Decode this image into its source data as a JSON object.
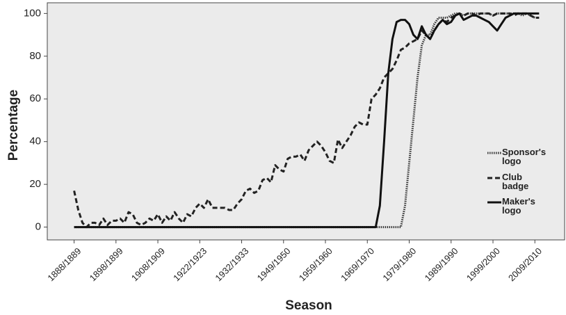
{
  "chart_data": {
    "type": "line",
    "x_label": "Season",
    "y_label": "Percentage",
    "categories": [
      "1888/1889",
      null,
      null,
      null,
      null,
      null,
      null,
      null,
      null,
      null,
      "1898/1899",
      null,
      null,
      null,
      null,
      null,
      null,
      null,
      null,
      null,
      "1908/1909",
      null,
      null,
      null,
      null,
      null,
      null,
      null,
      null,
      null,
      "1922/1923",
      null,
      null,
      null,
      null,
      null,
      null,
      null,
      null,
      null,
      "1932/1933",
      null,
      null,
      null,
      null,
      null,
      null,
      null,
      null,
      null,
      "1949/1950",
      null,
      null,
      null,
      null,
      null,
      null,
      null,
      null,
      null,
      "1959/1960",
      null,
      null,
      null,
      null,
      null,
      null,
      null,
      null,
      null,
      "1969/1970",
      null,
      null,
      null,
      null,
      null,
      null,
      null,
      null,
      null,
      "1979/1980",
      null,
      null,
      null,
      null,
      null,
      null,
      null,
      null,
      null,
      "1989/1990",
      null,
      null,
      null,
      null,
      null,
      null,
      null,
      null,
      null,
      "1999/2000",
      null,
      null,
      null,
      null,
      null,
      null,
      null,
      null,
      null,
      "2009/2010",
      null
    ],
    "series": [
      {
        "name": "Sponsor's logo",
        "color": "#333333",
        "dash": "dotted",
        "values": [
          0,
          0,
          0,
          0,
          0,
          0,
          0,
          0,
          0,
          0,
          0,
          0,
          0,
          0,
          0,
          0,
          0,
          0,
          0,
          0,
          0,
          0,
          0,
          0,
          0,
          0,
          0,
          0,
          0,
          0,
          0,
          0,
          0,
          0,
          0,
          0,
          0,
          0,
          0,
          0,
          0,
          0,
          0,
          0,
          0,
          0,
          0,
          0,
          0,
          0,
          0,
          0,
          0,
          0,
          0,
          0,
          0,
          0,
          0,
          0,
          0,
          0,
          0,
          0,
          0,
          0,
          0,
          0,
          0,
          0,
          0,
          0,
          0,
          0,
          0,
          0,
          0,
          0,
          0,
          10,
          30,
          50,
          70,
          85,
          90,
          90,
          95,
          98,
          98,
          98,
          99,
          100,
          100,
          99,
          100,
          100,
          100,
          100,
          100,
          100,
          99,
          100,
          100,
          100,
          100,
          100,
          100,
          99,
          100,
          99,
          98,
          98
        ]
      },
      {
        "name": "Club badge",
        "color": "#222222",
        "dash": "dashed",
        "values": [
          17,
          8,
          2,
          0,
          2,
          2,
          1,
          4,
          1,
          3,
          3,
          4,
          2,
          7,
          6,
          2,
          1,
          2,
          4,
          3,
          6,
          2,
          5,
          3,
          7,
          4,
          2,
          6,
          5,
          9,
          11,
          9,
          13,
          9,
          9,
          9,
          9,
          8,
          8,
          11,
          13,
          17,
          18,
          16,
          17,
          22,
          23,
          21,
          29,
          27,
          26,
          32,
          33,
          33,
          34,
          31,
          36,
          38,
          40,
          38,
          35,
          31,
          30,
          41,
          37,
          40,
          43,
          47,
          49,
          48,
          48,
          60,
          62,
          65,
          70,
          72,
          74,
          78,
          83,
          84,
          86,
          87,
          88,
          92,
          90,
          88,
          92,
          95,
          97,
          96,
          98,
          99,
          100,
          99,
          100,
          100,
          99,
          100,
          100,
          100,
          99,
          100,
          100,
          100,
          100,
          99,
          100,
          100,
          100,
          99,
          98,
          98
        ]
      },
      {
        "name": "Maker's logo",
        "color": "#111111",
        "dash": "solid",
        "values": [
          0,
          0,
          0,
          0,
          0,
          0,
          0,
          0,
          0,
          0,
          0,
          0,
          0,
          0,
          0,
          0,
          0,
          0,
          0,
          0,
          0,
          0,
          0,
          0,
          0,
          0,
          0,
          0,
          0,
          0,
          0,
          0,
          0,
          0,
          0,
          0,
          0,
          0,
          0,
          0,
          0,
          0,
          0,
          0,
          0,
          0,
          0,
          0,
          0,
          0,
          0,
          0,
          0,
          0,
          0,
          0,
          0,
          0,
          0,
          0,
          0,
          0,
          0,
          0,
          0,
          0,
          0,
          0,
          0,
          0,
          0,
          0,
          0,
          10,
          40,
          72,
          88,
          96,
          97,
          97,
          95,
          90,
          88,
          94,
          90,
          88,
          92,
          95,
          97,
          95,
          96,
          99,
          100,
          97,
          98,
          99,
          99,
          98,
          97,
          96,
          94,
          92,
          95,
          98,
          99,
          100,
          100,
          100,
          100,
          100,
          100,
          100
        ]
      }
    ],
    "ylim": [
      -6,
      105
    ],
    "yticks": [
      0,
      20,
      40,
      60,
      80,
      100
    ],
    "grid": false,
    "legend": "right"
  }
}
